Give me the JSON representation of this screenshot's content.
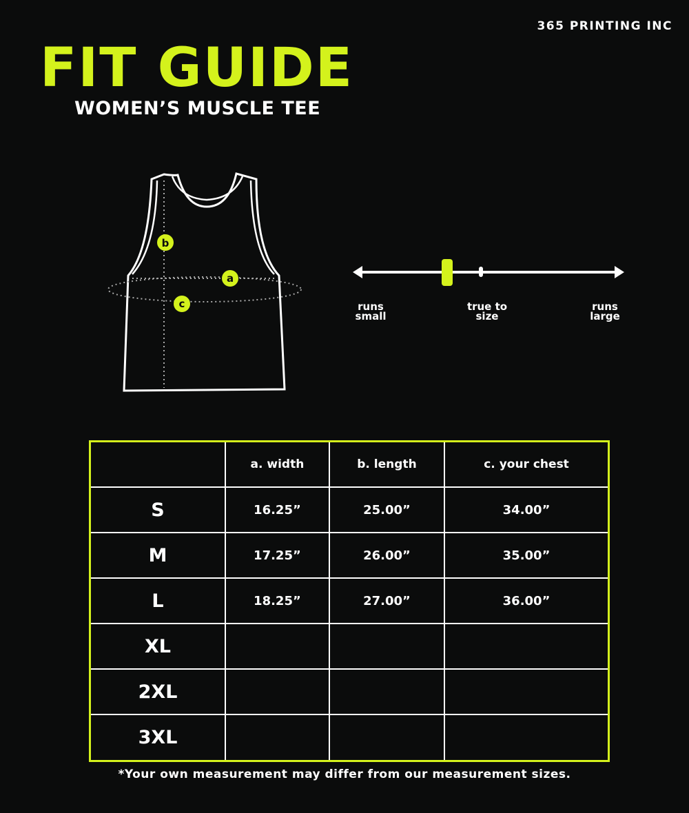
{
  "brand": "365 PRINTING INC",
  "title": "FIT GUIDE",
  "subtitle": "WOMEN’S MUSCLE TEE",
  "diagram": {
    "markers": [
      "a",
      "b",
      "c"
    ]
  },
  "fit_scale": {
    "labels": {
      "small": [
        "runs",
        "small"
      ],
      "true": [
        "true to",
        "size"
      ],
      "large": [
        "runs",
        "large"
      ]
    },
    "indicator_position": "between runs small and true to size (approx. 35% from left)"
  },
  "table": {
    "headers": [
      "",
      "a. width",
      "b. length",
      "c. your chest"
    ],
    "rows": [
      {
        "size": "S",
        "width": "16.25”",
        "length": "25.00”",
        "chest": "34.00”"
      },
      {
        "size": "M",
        "width": "17.25”",
        "length": "26.00”",
        "chest": "35.00”"
      },
      {
        "size": "L",
        "width": "18.25”",
        "length": "27.00”",
        "chest": "36.00”"
      },
      {
        "size": "XL",
        "width": "",
        "length": "",
        "chest": ""
      },
      {
        "size": "2XL",
        "width": "",
        "length": "",
        "chest": ""
      },
      {
        "size": "3XL",
        "width": "",
        "length": "",
        "chest": ""
      }
    ]
  },
  "note": "*Your own measurement may differ from our measurement sizes.",
  "colors": {
    "background": "#0b0c0c",
    "accent": "#d4f21c",
    "text": "#ffffff"
  }
}
